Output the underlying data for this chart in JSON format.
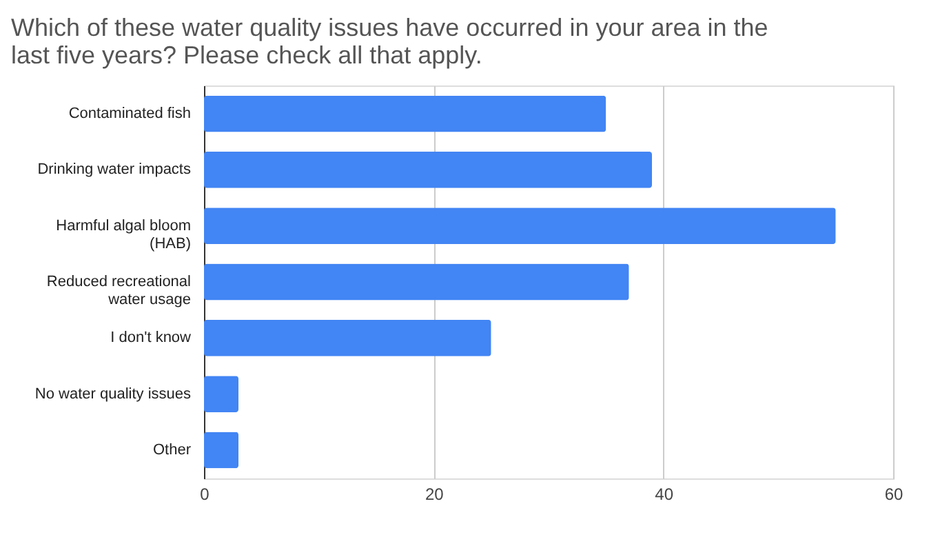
{
  "chart_data": {
    "type": "bar",
    "orientation": "horizontal",
    "title": "Which of these water quality issues have occurred in your area in the last five years? Please check all that apply.",
    "categories": [
      "Contaminated fish",
      "Drinking water impacts",
      "Harmful algal bloom (HAB)",
      "Reduced recreational water usage",
      "I don't know",
      "No water quality issues",
      "Other"
    ],
    "values": [
      35,
      39,
      55,
      37,
      25,
      3,
      3
    ],
    "color": "#4285f4",
    "xlim": [
      0,
      60
    ],
    "xticks": [
      0,
      20,
      40,
      60
    ],
    "grid": "x"
  }
}
